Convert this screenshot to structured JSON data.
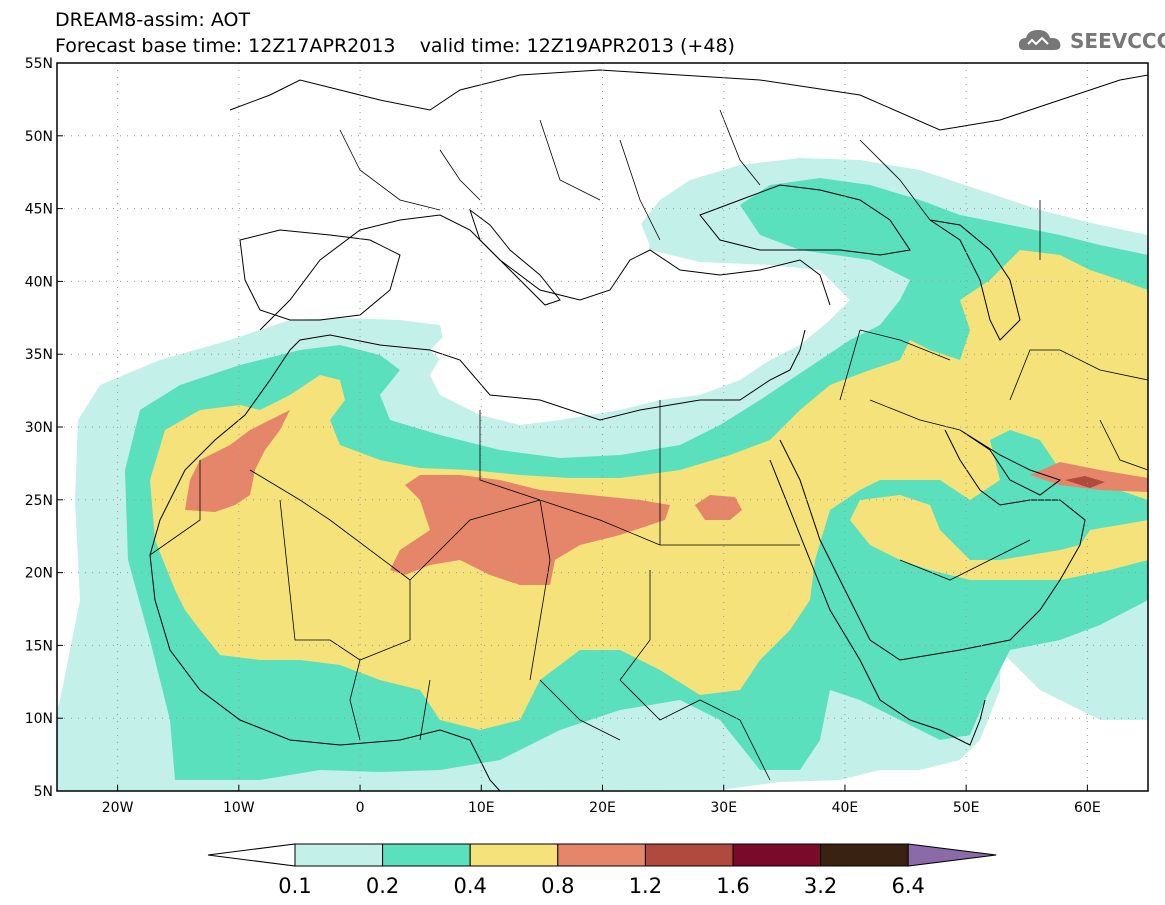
{
  "header": {
    "title_line1": "DREAM8-assim: AOT",
    "base_time_label": "Forecast base time: 12Z17APR2013",
    "valid_time_label": "valid time: 12Z19APR2013 (+48)"
  },
  "logo": {
    "text": "SEEVCCC",
    "icon": "cloud-icon"
  },
  "map": {
    "projection": "lat-lon",
    "lon_range": [
      -25,
      65
    ],
    "lat_range": [
      5,
      55
    ],
    "lat_ticks": [
      "55N",
      "50N",
      "45N",
      "40N",
      "35N",
      "30N",
      "25N",
      "20N",
      "15N",
      "10N",
      "5N"
    ],
    "lon_ticks": [
      "20W",
      "10W",
      "0",
      "10E",
      "20E",
      "30E",
      "40E",
      "50E",
      "60E"
    ],
    "grid": "dotted"
  },
  "colorbar": {
    "labels": [
      "0.1",
      "0.2",
      "0.4",
      "0.8",
      "1.2",
      "1.6",
      "3.2",
      "6.4"
    ],
    "colors": [
      "#ffffff",
      "#c4f0ea",
      "#5ae0bc",
      "#f5e27a",
      "#e5866a",
      "#b04a3e",
      "#7a0a2a",
      "#3a2212",
      "#8a6aa8"
    ]
  }
}
